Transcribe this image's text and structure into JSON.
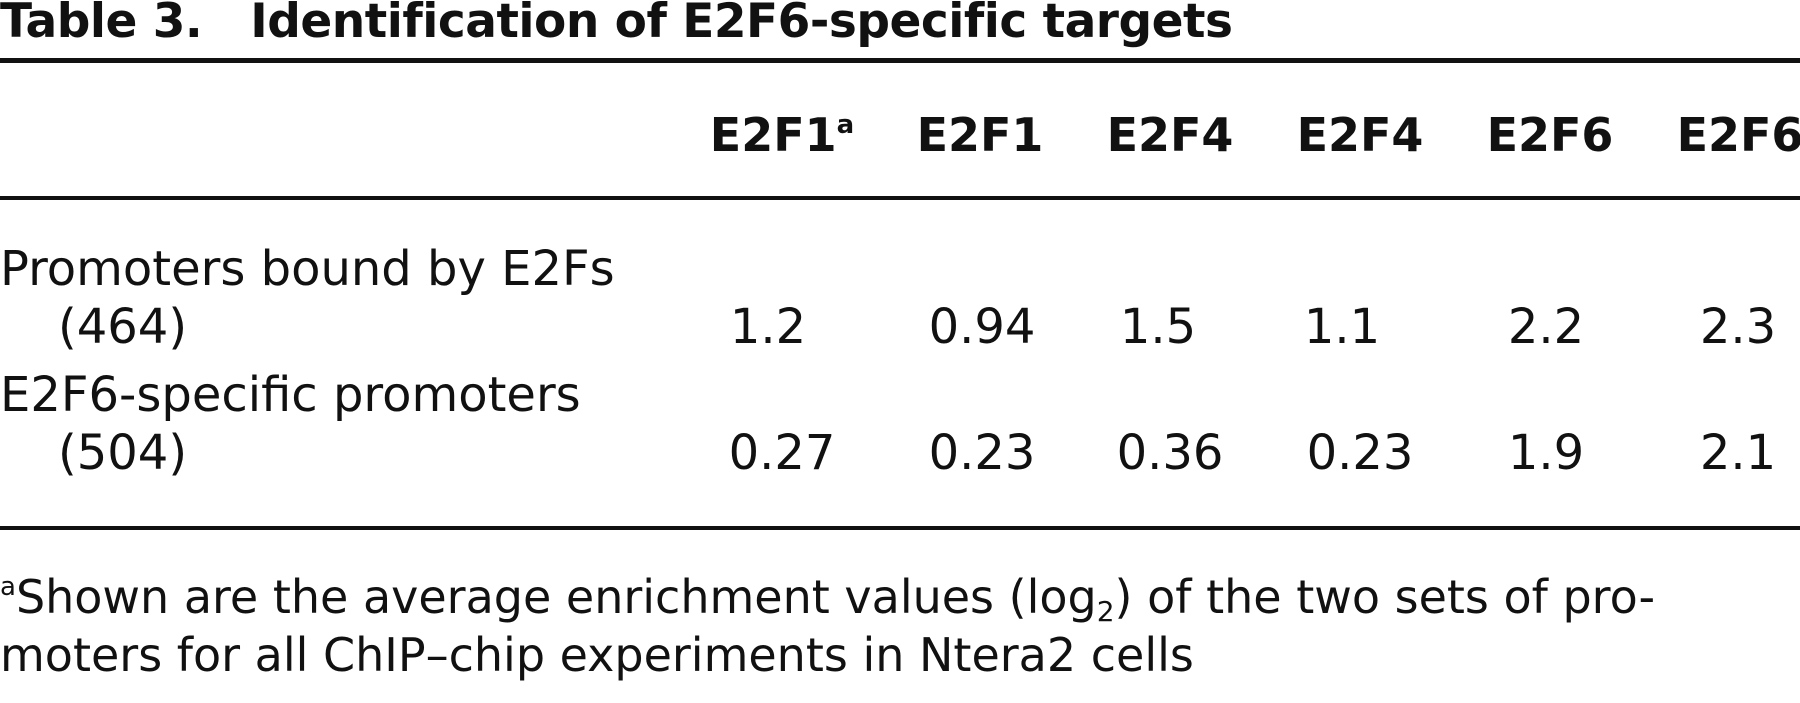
{
  "table": {
    "label": "Table 3.",
    "title": "Identification of E2F6-specific targets",
    "columns": [
      {
        "name": "E2F1",
        "marker": "a"
      },
      {
        "name": "E2F1",
        "marker": ""
      },
      {
        "name": "E2F4",
        "marker": ""
      },
      {
        "name": "E2F4",
        "marker": ""
      },
      {
        "name": "E2F6",
        "marker": ""
      },
      {
        "name": "E2F6",
        "marker": ""
      }
    ],
    "rows": [
      {
        "label": "Promoters bound by E2Fs",
        "count": "(464)",
        "values": [
          "1.2",
          "0.94",
          "1.5",
          "1.1",
          "2.2",
          "2.3"
        ]
      },
      {
        "label": "E2F6-specific promoters",
        "count": "(504)",
        "values": [
          "0.27",
          "0.23",
          "0.36",
          "0.23",
          "1.9",
          "2.1"
        ]
      }
    ]
  },
  "footnote": {
    "marker": "a",
    "text_before": "Shown are the average enrichment values (log",
    "subscript": "2",
    "text_after": ") of the two sets of pro-",
    "line2": "moters for all ChIP–chip experiments in Ntera2 cells"
  }
}
